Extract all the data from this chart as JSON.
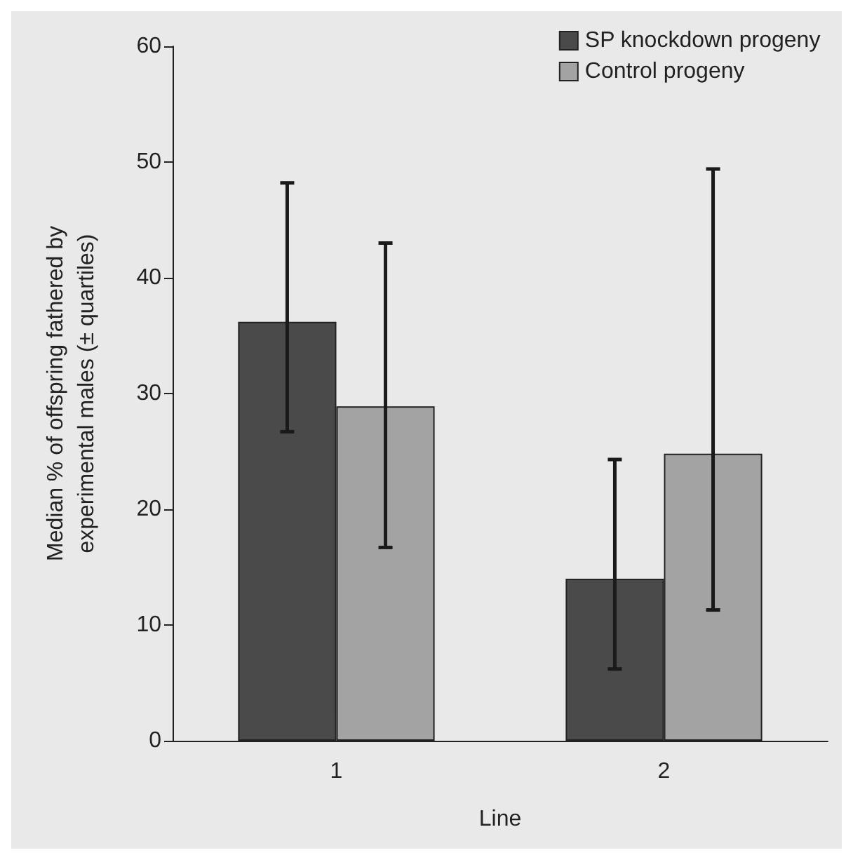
{
  "chart_data": {
    "type": "bar",
    "xlabel": "Line",
    "ylabel": "Median % of offspring fathered by\nexperimental males (± quartiles)",
    "categories": [
      "1",
      "2"
    ],
    "series": [
      {
        "name": "SP knockdown progeny",
        "color": "#4a4a4a",
        "values": [
          36.2,
          14.0
        ],
        "errors": [
          [
            26.7,
            48.2
          ],
          [
            6.2,
            24.3
          ]
        ]
      },
      {
        "name": "Control progeny",
        "color": "#a3a3a3",
        "values": [
          28.9,
          24.8
        ],
        "errors": [
          [
            16.7,
            43.0
          ],
          [
            11.3,
            49.4
          ]
        ]
      }
    ],
    "ylim": [
      0,
      60
    ],
    "yticks": [
      0,
      10,
      20,
      30,
      40,
      50,
      60
    ],
    "legend": "top right",
    "grid": false
  }
}
